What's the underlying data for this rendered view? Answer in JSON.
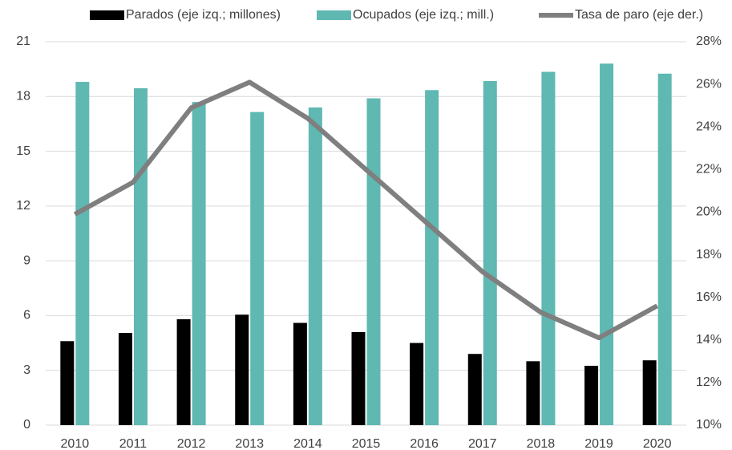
{
  "chart_data": {
    "type": "bar_line",
    "categories": [
      "2010",
      "2011",
      "2012",
      "2013",
      "2014",
      "2015",
      "2016",
      "2017",
      "2018",
      "2019",
      "2020"
    ],
    "series": [
      {
        "name": "Parados (eje izq.; millones)",
        "type": "bar",
        "color": "#000000",
        "values": [
          4.6,
          5.05,
          5.8,
          6.05,
          5.6,
          5.1,
          4.5,
          3.9,
          3.5,
          3.25,
          3.55
        ]
      },
      {
        "name": "Ocupados (eje izq.; mill.)",
        "type": "bar",
        "color": "#5fb8b2",
        "values": [
          18.8,
          18.45,
          17.7,
          17.15,
          17.4,
          17.9,
          18.35,
          18.85,
          19.35,
          19.8,
          19.25
        ]
      },
      {
        "name": "Tasa de paro (eje der.)",
        "type": "line",
        "axis": "y2",
        "color": "#7f7f7f",
        "values": [
          19.9,
          21.4,
          24.9,
          26.1,
          24.4,
          22.0,
          19.6,
          17.2,
          15.3,
          14.1,
          15.6
        ]
      }
    ],
    "ylim": [
      0,
      21
    ],
    "yticks": [
      0,
      3,
      6,
      9,
      12,
      15,
      18,
      21
    ],
    "y2lim": [
      10,
      28
    ],
    "y2ticks": [
      {
        "value": 10,
        "label": "10%"
      },
      {
        "value": 12,
        "label": "12%"
      },
      {
        "value": 14,
        "label": "14%"
      },
      {
        "value": 16,
        "label": "16%"
      },
      {
        "value": 18,
        "label": "18%"
      },
      {
        "value": 20,
        "label": "20%"
      },
      {
        "value": 22,
        "label": "22%"
      },
      {
        "value": 24,
        "label": "24%"
      },
      {
        "value": 26,
        "label": "26%"
      },
      {
        "value": 28,
        "label": "28%"
      }
    ],
    "grid": true,
    "legend": "top"
  }
}
